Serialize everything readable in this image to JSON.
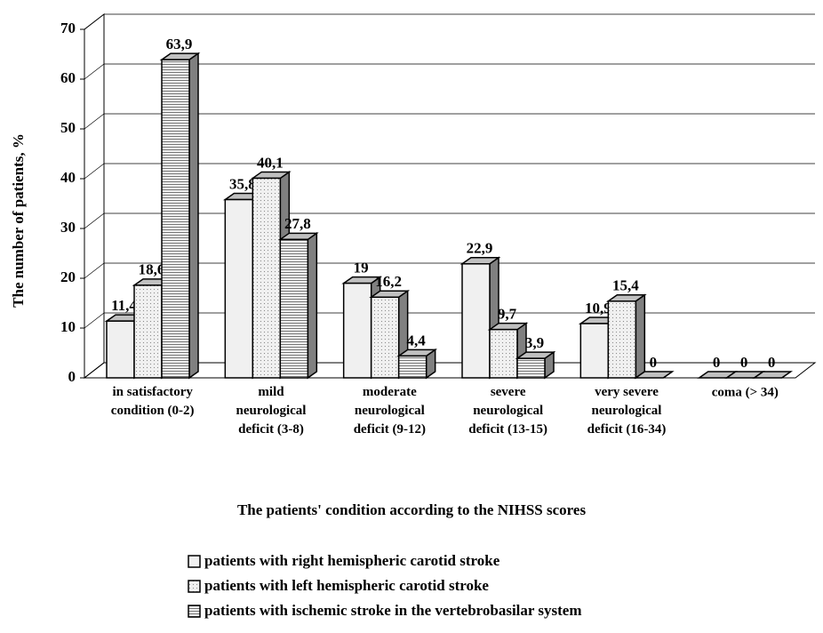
{
  "chart_data": {
    "type": "bar3d",
    "x_label": "The patients' condition according to the NIHSS scores",
    "y_label": "The number of patients, %",
    "categories": [
      "in satisfactory\ncondition (0-2)",
      "mild\nneurological\ndeficit (3-8)",
      "moderate\nneurological\ndeficit (9-12)",
      "severe\nneurological\ndeficit (13-15)",
      "very severe\nneurological\ndeficit (16-34)",
      "coma (> 34)"
    ],
    "series": [
      {
        "name": "patients with right hemispheric carotid stroke",
        "color": "#f0f0f0",
        "pattern": "solid",
        "values": [
          11.4,
          35.8,
          19,
          22.9,
          10.9,
          0
        ],
        "value_labels": [
          "11,4",
          "35,8",
          "19",
          "22,9",
          "10,9",
          "0"
        ]
      },
      {
        "name": "patients with left hemispheric carotid stroke",
        "color": "#f0f0f0",
        "pattern": "dots",
        "values": [
          18.6,
          40.1,
          16.2,
          9.7,
          15.4,
          0
        ],
        "value_labels": [
          "18,6",
          "40,1",
          "16,2",
          "9,7",
          "15,4",
          "0"
        ]
      },
      {
        "name": "patients with ischemic stroke in the vertebrobasilar system",
        "color": "#f0f0f0",
        "pattern": "stripes",
        "values": [
          63.9,
          27.8,
          4.4,
          3.9,
          0,
          0
        ],
        "value_labels": [
          "63,9",
          "27,8",
          "4,4",
          "3,9",
          "0",
          "0"
        ]
      }
    ],
    "ylim": [
      0,
      70
    ],
    "yticks": [
      0,
      10,
      20,
      30,
      40,
      50,
      60,
      70
    ],
    "grid": true
  }
}
